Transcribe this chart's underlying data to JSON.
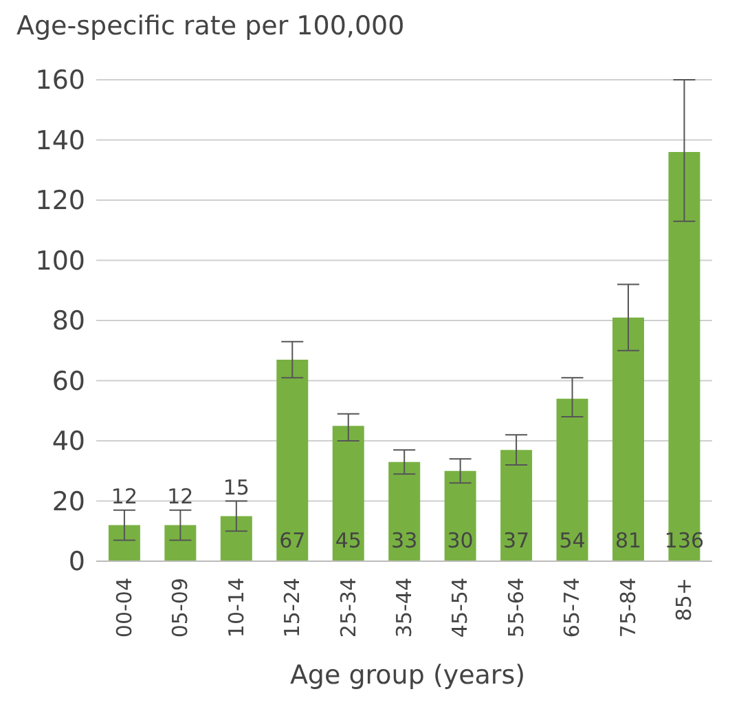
{
  "chart_data": {
    "type": "bar",
    "title": "Age-specific rate per 100,000",
    "xlabel": "Age group (years)",
    "categories": [
      "00-04",
      "05-09",
      "10-14",
      "15-24",
      "25-34",
      "35-44",
      "45-54",
      "55-64",
      "65-74",
      "75-84",
      "85+"
    ],
    "values": [
      12,
      12,
      15,
      67,
      45,
      33,
      30,
      37,
      54,
      81,
      136
    ],
    "errors": [
      [
        7,
        17
      ],
      [
        7,
        17
      ],
      [
        10,
        20
      ],
      [
        61,
        73
      ],
      [
        40,
        49
      ],
      [
        29,
        37
      ],
      [
        26,
        34
      ],
      [
        32,
        42
      ],
      [
        48,
        61
      ],
      [
        70,
        92
      ],
      [
        113,
        160
      ]
    ],
    "color": "#78b142",
    "ylim": [
      0,
      160
    ],
    "yticks": [
      0,
      20,
      40,
      60,
      80,
      100,
      120,
      140,
      160
    ],
    "grid": "y",
    "data_labels": true
  }
}
